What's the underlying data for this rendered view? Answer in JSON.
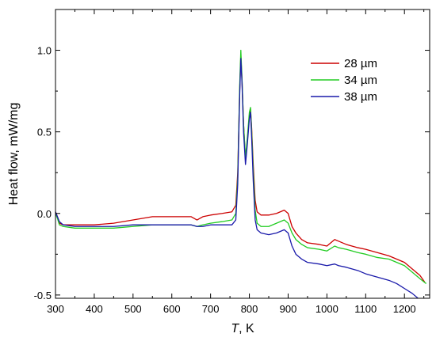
{
  "chart_data": {
    "type": "line",
    "xlabel_italic": "T",
    "xlabel_rest": ", K",
    "ylabel": "Heat flow, mW/mg",
    "xlim": [
      300,
      1265
    ],
    "ylim": [
      -0.52,
      1.25
    ],
    "x_ticks": [
      300,
      400,
      500,
      600,
      700,
      800,
      900,
      1000,
      1100,
      1200
    ],
    "x_tick_labels": [
      "300",
      "400",
      "500",
      "600",
      "700",
      "800",
      "900",
      "1000",
      "1100",
      "1200"
    ],
    "y_ticks": [
      -0.5,
      0.0,
      0.5,
      1.0
    ],
    "y_tick_labels": [
      "-0.5",
      "0.0",
      "0.5",
      "1.0"
    ],
    "legend_position": "top-right",
    "series": [
      {
        "name": "28 µm",
        "color": "#cc0000",
        "x": [
          300,
          305,
          310,
          320,
          350,
          400,
          450,
          500,
          550,
          600,
          650,
          665,
          680,
          700,
          730,
          755,
          765,
          770,
          775,
          778,
          781,
          785,
          790,
          795,
          800,
          803,
          806,
          810,
          815,
          820,
          830,
          850,
          870,
          890,
          900,
          905,
          910,
          920,
          935,
          950,
          980,
          1000,
          1020,
          1030,
          1050,
          1080,
          1100,
          1130,
          1160,
          1180,
          1200,
          1220,
          1240,
          1252
        ],
        "y": [
          0.01,
          -0.02,
          -0.06,
          -0.07,
          -0.07,
          -0.07,
          -0.06,
          -0.04,
          -0.02,
          -0.02,
          -0.02,
          -0.04,
          -0.02,
          -0.01,
          0.0,
          0.01,
          0.05,
          0.25,
          0.75,
          0.97,
          0.82,
          0.55,
          0.33,
          0.45,
          0.6,
          0.64,
          0.52,
          0.3,
          0.08,
          0.01,
          -0.01,
          -0.01,
          0.0,
          0.02,
          0.0,
          -0.04,
          -0.08,
          -0.12,
          -0.16,
          -0.18,
          -0.19,
          -0.2,
          -0.16,
          -0.17,
          -0.19,
          -0.21,
          -0.22,
          -0.24,
          -0.26,
          -0.28,
          -0.3,
          -0.34,
          -0.38,
          -0.42
        ]
      },
      {
        "name": "34 µm",
        "color": "#22cc22",
        "x": [
          300,
          305,
          310,
          320,
          350,
          400,
          450,
          500,
          550,
          600,
          650,
          665,
          680,
          700,
          730,
          755,
          765,
          770,
          775,
          778,
          781,
          785,
          790,
          795,
          800,
          803,
          806,
          810,
          815,
          820,
          830,
          850,
          870,
          890,
          900,
          905,
          910,
          920,
          935,
          950,
          980,
          1000,
          1020,
          1030,
          1050,
          1080,
          1100,
          1130,
          1160,
          1180,
          1200,
          1220,
          1240,
          1256
        ],
        "y": [
          0.0,
          -0.03,
          -0.07,
          -0.08,
          -0.09,
          -0.09,
          -0.09,
          -0.08,
          -0.07,
          -0.07,
          -0.07,
          -0.08,
          -0.07,
          -0.06,
          -0.05,
          -0.04,
          0.0,
          0.22,
          0.78,
          1.0,
          0.83,
          0.55,
          0.34,
          0.47,
          0.62,
          0.65,
          0.5,
          0.26,
          0.02,
          -0.06,
          -0.08,
          -0.08,
          -0.06,
          -0.04,
          -0.06,
          -0.09,
          -0.12,
          -0.16,
          -0.19,
          -0.21,
          -0.22,
          -0.23,
          -0.2,
          -0.21,
          -0.22,
          -0.24,
          -0.25,
          -0.27,
          -0.28,
          -0.3,
          -0.32,
          -0.36,
          -0.4,
          -0.43
        ]
      },
      {
        "name": "38 µm",
        "color": "#1a1aaa",
        "x": [
          300,
          305,
          310,
          320,
          350,
          400,
          450,
          500,
          550,
          600,
          650,
          665,
          680,
          700,
          730,
          755,
          765,
          770,
          775,
          778,
          781,
          785,
          790,
          795,
          800,
          803,
          806,
          810,
          815,
          820,
          830,
          850,
          870,
          890,
          900,
          905,
          910,
          920,
          935,
          950,
          980,
          1000,
          1020,
          1030,
          1050,
          1080,
          1100,
          1130,
          1160,
          1180,
          1200,
          1220,
          1235
        ],
        "y": [
          0.01,
          -0.02,
          -0.05,
          -0.07,
          -0.08,
          -0.08,
          -0.08,
          -0.07,
          -0.07,
          -0.07,
          -0.07,
          -0.08,
          -0.08,
          -0.07,
          -0.07,
          -0.07,
          -0.04,
          0.18,
          0.72,
          0.95,
          0.8,
          0.5,
          0.3,
          0.43,
          0.58,
          0.62,
          0.46,
          0.2,
          -0.04,
          -0.1,
          -0.12,
          -0.13,
          -0.12,
          -0.1,
          -0.12,
          -0.16,
          -0.2,
          -0.25,
          -0.28,
          -0.3,
          -0.31,
          -0.32,
          -0.31,
          -0.32,
          -0.33,
          -0.35,
          -0.37,
          -0.39,
          -0.41,
          -0.43,
          -0.46,
          -0.49,
          -0.52
        ]
      }
    ]
  }
}
